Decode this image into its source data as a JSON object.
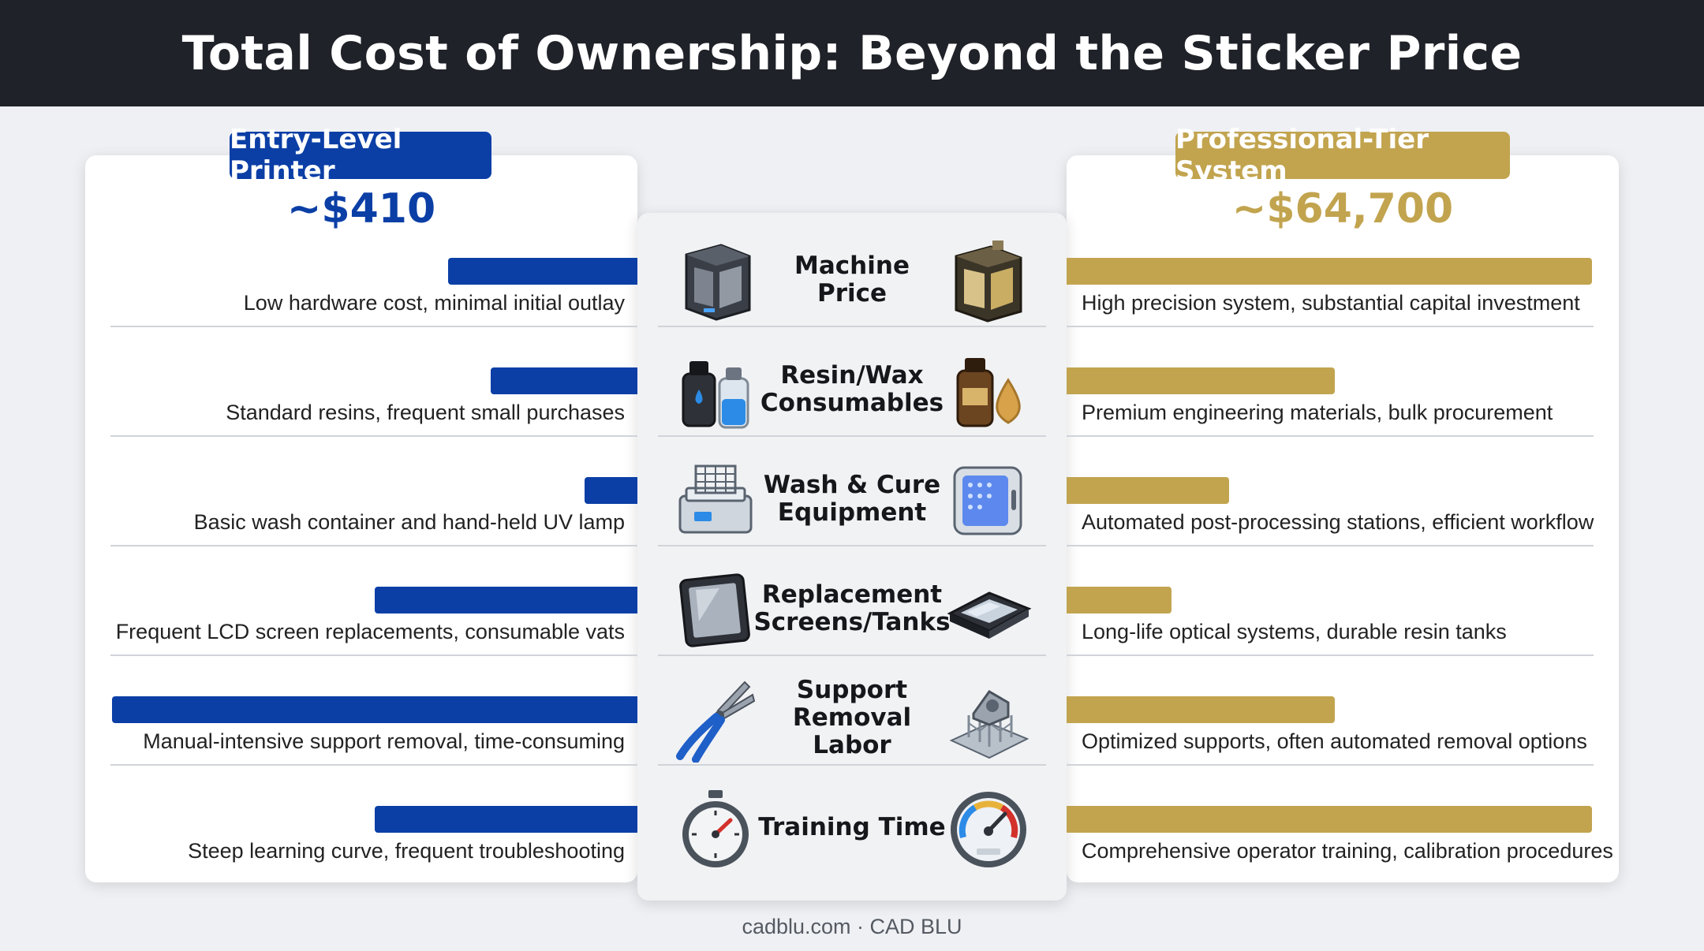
{
  "header": {
    "title": "Total Cost of Ownership: Beyond the Sticker Price"
  },
  "entry": {
    "label": "Entry-Level Printer",
    "price": "~$410",
    "color": "#0b3fa6"
  },
  "pro": {
    "label": "Professional-Tier System",
    "price": "~$64,700",
    "color": "#c2a44f"
  },
  "rows": [
    {
      "category": "Machine Price",
      "icon_left": "entry-printer-icon",
      "icon_right": "pro-printer-icon",
      "entry_desc": "Low hardware cost, minimal initial outlay",
      "pro_desc": "High precision system, substantial capital investment",
      "entry_level": 0.36,
      "pro_level": 1.0
    },
    {
      "category": "Resin/Wax Consumables",
      "icon_left": "resin-bottles-icon",
      "icon_right": "amber-bottle-drop-icon",
      "entry_desc": "Standard resins, frequent small purchases",
      "pro_desc": "Premium engineering materials, bulk procurement",
      "entry_level": 0.28,
      "pro_level": 0.51
    },
    {
      "category": "Wash & Cure Equipment",
      "icon_left": "wash-tank-icon",
      "icon_right": "curing-chamber-icon",
      "entry_desc": "Basic wash container and hand-held UV lamp",
      "pro_desc": "Automated post-processing stations, efficient workflow",
      "entry_level": 0.1,
      "pro_level": 0.31
    },
    {
      "category": "Replacement Screens/Tanks",
      "icon_left": "lcd-screen-icon",
      "icon_right": "resin-tank-icon",
      "entry_desc": "Frequent LCD screen replacements, consumable vats",
      "pro_desc": "Long-life optical systems, durable resin tanks",
      "entry_level": 0.5,
      "pro_level": 0.2
    },
    {
      "category": "Support Removal Labor",
      "icon_left": "pliers-icon",
      "icon_right": "supported-part-icon",
      "entry_desc": "Manual-intensive support removal, time-consuming",
      "pro_desc": "Optimized supports, often automated removal options",
      "entry_level": 1.0,
      "pro_level": 0.51
    },
    {
      "category": "Training Time",
      "icon_left": "stopwatch-icon",
      "icon_right": "gauge-icon",
      "entry_desc": "Steep learning curve, frequent troubleshooting",
      "pro_desc": "Comprehensive operator training, calibration procedures",
      "entry_level": 0.5,
      "pro_level": 1.0
    }
  ],
  "footer": {
    "text": "cadblu.com · CAD BLU"
  }
}
